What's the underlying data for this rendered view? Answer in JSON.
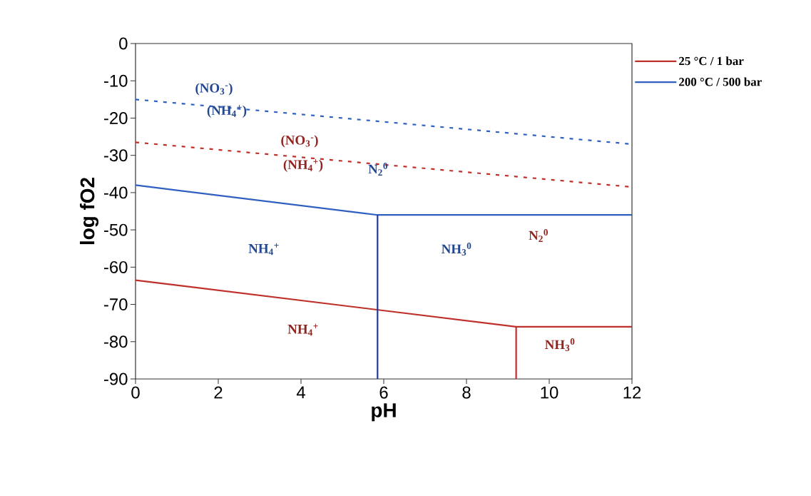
{
  "chart_data": {
    "type": "line",
    "xlabel": "pH",
    "ylabel": "log fO2",
    "xlim": [
      0,
      12
    ],
    "xticks": [
      0,
      2,
      4,
      6,
      8,
      10,
      12
    ],
    "ylim": [
      -90,
      0
    ],
    "yticks": [
      -90,
      -80,
      -70,
      -60,
      -50,
      -40,
      -30,
      -20,
      -10,
      0
    ],
    "legend": "top right",
    "series": [
      {
        "name": "25 °C / 1 bar",
        "color": "#c0302a",
        "line_style": "solid",
        "x": [
          0,
          9.2,
          12
        ],
        "values": [
          -63.5,
          -76,
          -76
        ]
      },
      {
        "color": "#c0302a",
        "line_style": "solid",
        "x": [
          9.2,
          9.2
        ],
        "values": [
          -76,
          -90
        ]
      },
      {
        "color": "#c0302a",
        "line_style": "dashed",
        "x": [
          0,
          12
        ],
        "values": [
          -26.5,
          -38.5
        ]
      },
      {
        "name": "200 °C / 500 bar",
        "color": "#2f5fc0",
        "line_style": "solid",
        "x": [
          0,
          5.85,
          12
        ],
        "values": [
          -38,
          -46,
          -46
        ]
      },
      {
        "color": "#23399a",
        "line_style": "solid",
        "x": [
          5.85,
          5.85
        ],
        "values": [
          -46,
          -90
        ]
      },
      {
        "color": "#2f5fc0",
        "line_style": "dashed",
        "x": [
          0,
          12
        ],
        "values": [
          -15,
          -27
        ]
      }
    ],
    "annotations": [
      "(NO$_{3}$$^{-}$)",
      "(NH$_{4}$$^{+}$)",
      "(NO$_{3}$$^{-}$)",
      "(NH$_{4}$$^{+}$)",
      "N$_{2}$$^{0}$",
      "NH$_{4}$$^{+}$",
      "NH$_{3}$$^{0}$",
      "N$_{2}$$^{0}$",
      "NH$_{4}$$^{+}$",
      "NH$_{3}$$^{0}$"
    ]
  }
}
